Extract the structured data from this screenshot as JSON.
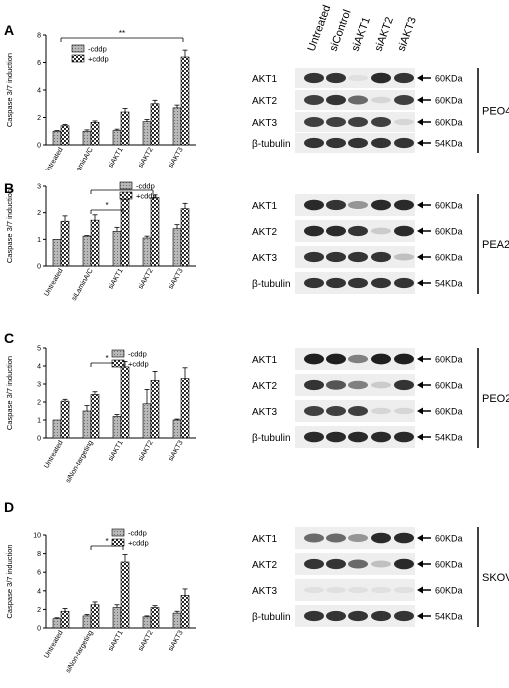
{
  "panels": [
    {
      "label": "A",
      "cell_line": "PEO4",
      "blot": {
        "lanes": [
          "Untreated",
          "siControl",
          "siAKT1",
          "siAKT2",
          "siAKT3"
        ],
        "rows": [
          {
            "protein": "AKT1",
            "size": "60KDa",
            "lanes": [
              0.85,
              0.85,
              0.05,
              0.9,
              0.85
            ]
          },
          {
            "protein": "AKT2",
            "size": "60KDa",
            "lanes": [
              0.8,
              0.85,
              0.6,
              0.1,
              0.8
            ]
          },
          {
            "protein": "AKT3",
            "size": "60KDa",
            "lanes": [
              0.8,
              0.8,
              0.8,
              0.8,
              0.1
            ]
          },
          {
            "protein": "β-tubulin",
            "size": "54KDa",
            "lanes": [
              0.85,
              0.85,
              0.85,
              0.85,
              0.85
            ]
          }
        ]
      }
    },
    {
      "label": "B",
      "cell_line": "PEA2",
      "blot": {
        "lanes": [
          "",
          "",
          "",
          "",
          ""
        ],
        "rows": [
          {
            "protein": "AKT1",
            "size": "60KDa",
            "lanes": [
              0.9,
              0.85,
              0.4,
              0.9,
              0.9
            ]
          },
          {
            "protein": "AKT2",
            "size": "60KDa",
            "lanes": [
              0.9,
              0.9,
              0.85,
              0.15,
              0.9
            ]
          },
          {
            "protein": "AKT3",
            "size": "60KDa",
            "lanes": [
              0.85,
              0.85,
              0.85,
              0.85,
              0.2
            ]
          },
          {
            "protein": "β-tubulin",
            "size": "54KDa",
            "lanes": [
              0.85,
              0.85,
              0.85,
              0.85,
              0.85
            ]
          }
        ]
      }
    },
    {
      "label": "C",
      "cell_line": "PEO23",
      "blot": {
        "lanes": [
          "",
          "",
          "",
          "",
          ""
        ],
        "rows": [
          {
            "protein": "AKT1",
            "size": "60KDa",
            "lanes": [
              0.95,
              0.95,
              0.5,
              0.95,
              0.95
            ]
          },
          {
            "protein": "AKT2",
            "size": "60KDa",
            "lanes": [
              0.85,
              0.7,
              0.5,
              0.15,
              0.85
            ]
          },
          {
            "protein": "AKT3",
            "size": "60KDa",
            "lanes": [
              0.8,
              0.8,
              0.8,
              0.1,
              0.1
            ]
          },
          {
            "protein": "β-tubulin",
            "size": "54KDa",
            "lanes": [
              0.9,
              0.9,
              0.9,
              0.9,
              0.9
            ]
          }
        ]
      }
    },
    {
      "label": "D",
      "cell_line": "SKOV3",
      "blot": {
        "lanes": [
          "",
          "",
          "",
          "",
          ""
        ],
        "rows": [
          {
            "protein": "AKT1",
            "size": "60KDa",
            "lanes": [
              0.6,
              0.6,
              0.4,
              0.9,
              0.9
            ]
          },
          {
            "protein": "AKT2",
            "size": "60KDa",
            "lanes": [
              0.85,
              0.85,
              0.6,
              0.2,
              0.9
            ]
          },
          {
            "protein": "AKT3",
            "size": "60KDa",
            "lanes": [
              0.05,
              0.05,
              0.05,
              0.05,
              0.05
            ]
          },
          {
            "protein": "β-tubulin",
            "size": "54KDa",
            "lanes": [
              0.85,
              0.85,
              0.85,
              0.85,
              0.85
            ]
          }
        ]
      }
    }
  ],
  "chart_data": [
    {
      "type": "bar",
      "ylabel": "Caspase 3/7 induction",
      "ylim": [
        0,
        8
      ],
      "yticks": [
        0,
        2,
        4,
        6,
        8
      ],
      "categories": [
        "Untreated",
        "siLaminA/C",
        "siAKT1",
        "siAKT2",
        "siAKT3"
      ],
      "series": [
        {
          "name": "-cddp",
          "values": [
            1.0,
            1.0,
            1.05,
            1.7,
            2.7
          ],
          "errors": [
            0.05,
            0.1,
            0.1,
            0.15,
            0.2
          ]
        },
        {
          "name": "+cddp",
          "values": [
            1.4,
            1.65,
            2.4,
            3.0,
            6.4
          ],
          "errors": [
            0.1,
            0.1,
            0.25,
            0.25,
            0.5
          ]
        }
      ],
      "significance": [
        {
          "from": "Untreated",
          "to": "siAKT3",
          "label": "**"
        }
      ],
      "legend": "top-left"
    },
    {
      "type": "bar",
      "ylabel": "Caspase 3/7 induction",
      "ylim": [
        0,
        3
      ],
      "yticks": [
        0,
        1,
        2,
        3
      ],
      "categories": [
        "Untreated",
        "siLaminA/C",
        "siAKT1",
        "siAKT2",
        "siAKT3"
      ],
      "series": [
        {
          "name": "-cddp",
          "values": [
            1.0,
            1.12,
            1.3,
            1.05,
            1.4
          ],
          "errors": [
            0.0,
            0.02,
            0.15,
            0.07,
            0.15
          ]
        },
        {
          "name": "+cddp",
          "values": [
            1.68,
            1.72,
            2.5,
            2.57,
            2.15
          ],
          "errors": [
            0.2,
            0.2,
            0.1,
            0.1,
            0.2
          ]
        }
      ],
      "significance": [
        {
          "from": "siLaminA/C",
          "to": "siAKT2",
          "label": "*"
        },
        {
          "from": "siLaminA/C",
          "to": "siAKT1",
          "label": "*"
        }
      ],
      "legend": "top-right"
    },
    {
      "type": "bar",
      "ylabel": "Caspase 3/7 induction",
      "ylim": [
        0,
        5
      ],
      "yticks": [
        0,
        1,
        2,
        3,
        4,
        5
      ],
      "categories": [
        "Untreated",
        "siNon-targeting",
        "siAKT1",
        "siAKT2",
        "siAKT3"
      ],
      "series": [
        {
          "name": "-cddp",
          "values": [
            1.0,
            1.5,
            1.2,
            1.9,
            1.0
          ],
          "errors": [
            0.0,
            0.3,
            0.1,
            0.8,
            0.05
          ]
        },
        {
          "name": "+cddp",
          "values": [
            2.05,
            2.42,
            3.95,
            3.2,
            3.3
          ],
          "errors": [
            0.1,
            0.15,
            0.3,
            0.5,
            0.6
          ]
        }
      ],
      "significance": [
        {
          "from": "siNon-targeting",
          "to": "siAKT1",
          "label": "*"
        }
      ],
      "legend": "top-right"
    },
    {
      "type": "bar",
      "ylabel": "Caspase 3/7 induction",
      "ylim": [
        0,
        10
      ],
      "yticks": [
        0,
        2,
        4,
        6,
        8,
        10
      ],
      "categories": [
        "Untreated",
        "siNon-targeting",
        "siAKT1",
        "siAKT2",
        "siAKT3"
      ],
      "series": [
        {
          "name": "-cddp",
          "values": [
            1.0,
            1.3,
            2.2,
            1.2,
            1.6
          ],
          "errors": [
            0.1,
            0.15,
            0.3,
            0.1,
            0.2
          ]
        },
        {
          "name": "+cddp",
          "values": [
            1.8,
            2.5,
            7.1,
            2.2,
            3.5
          ],
          "errors": [
            0.3,
            0.3,
            0.8,
            0.2,
            0.7
          ]
        }
      ],
      "significance": [
        {
          "from": "siNon-targeting",
          "to": "siAKT1",
          "label": "*"
        }
      ],
      "legend": "top-right"
    }
  ]
}
